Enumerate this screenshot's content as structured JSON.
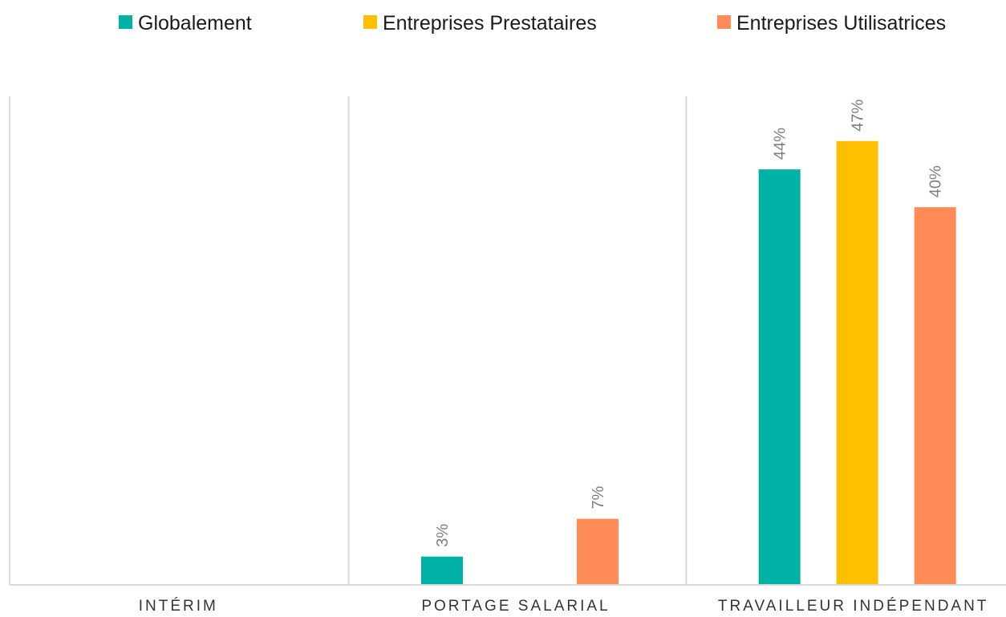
{
  "chart_data": {
    "type": "bar",
    "categories": [
      "INTÉRIM",
      "PORTAGE SALARIAL",
      "TRAVAILLEUR INDÉPENDANT"
    ],
    "series": [
      {
        "name": "Globalement",
        "color": "#00B2A5",
        "values": [
          null,
          3,
          44
        ],
        "labels": [
          "",
          "3%",
          "44%"
        ]
      },
      {
        "name": "Entreprises Prestataires",
        "color": "#FFC000",
        "values": [
          null,
          null,
          47
        ],
        "labels": [
          "",
          "",
          "47%"
        ]
      },
      {
        "name": "Entreprises Utilisatrices",
        "color": "#FF8C56",
        "values": [
          null,
          7,
          40
        ],
        "labels": [
          "",
          "7%",
          "40%"
        ]
      }
    ],
    "value_unit": "%",
    "ylim": [
      0,
      50
    ],
    "legend_position": "top",
    "grid": false,
    "category_separators": true
  }
}
